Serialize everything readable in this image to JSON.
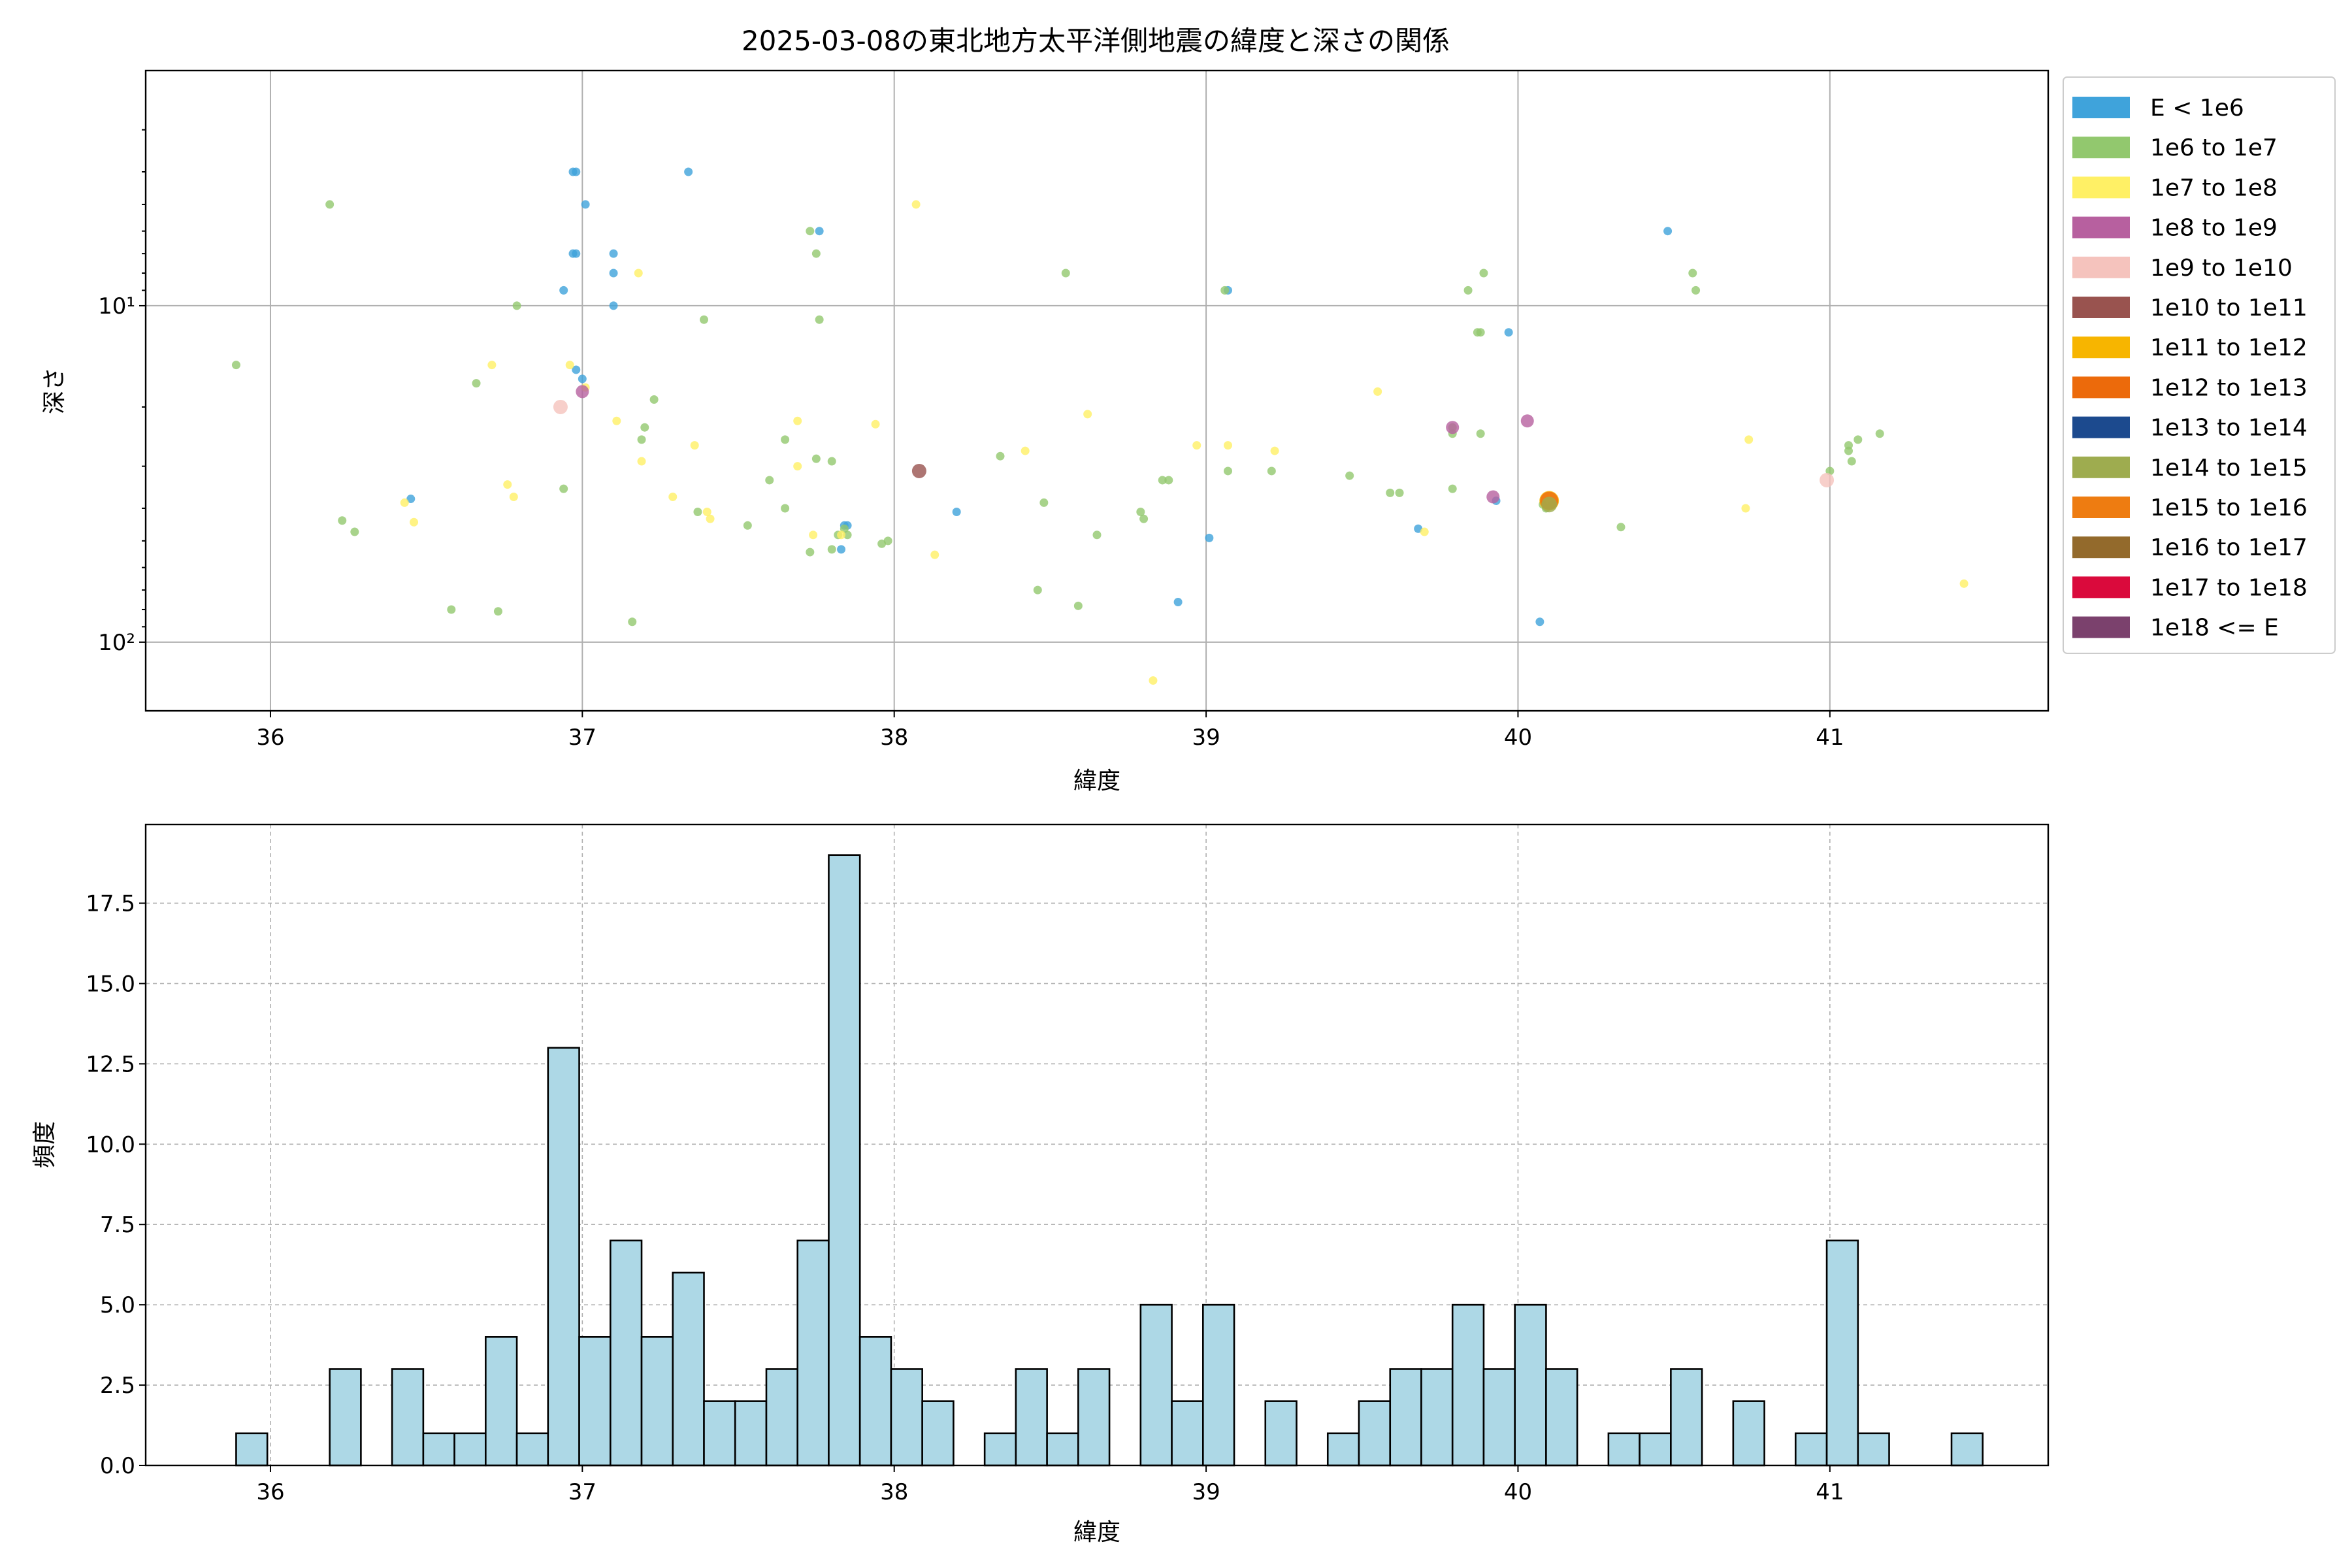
{
  "chart_data": [
    {
      "type": "scatter",
      "title": "2025-03-08の東北地方太平洋側地震の緯度と深さの関係",
      "xlabel": "緯度",
      "ylabel": "深さ",
      "xlim": [
        35.6,
        41.7
      ],
      "ylim": [
        160,
        2
      ],
      "yscale": "log",
      "y_inverted": true,
      "x_ticks": [
        "36",
        "37",
        "38",
        "39",
        "40",
        "41"
      ],
      "y_ticks": [
        {
          "value": 10,
          "label": "10¹"
        },
        {
          "value": 100,
          "label": "10²"
        }
      ],
      "grid": true,
      "legend_position": "outside-right",
      "legend": [
        {
          "label": "E < 1e6",
          "color": "#3fa3db"
        },
        {
          "label": "1e6 to 1e7",
          "color": "#92c86e"
        },
        {
          "label": "1e7 to 1e8",
          "color": "#fff065"
        },
        {
          "label": "1e8 to 1e9",
          "color": "#b7609f"
        },
        {
          "label": "1e9 to 1e10",
          "color": "#f5c3bd"
        },
        {
          "label": "1e10 to 1e11",
          "color": "#99534f"
        },
        {
          "label": "1e11 to 1e12",
          "color": "#f7b500"
        },
        {
          "label": "1e12 to 1e13",
          "color": "#ec6a0b"
        },
        {
          "label": "1e13 to 1e14",
          "color": "#1c4a8e"
        },
        {
          "label": "1e14 to 1e15",
          "color": "#9eac4f"
        },
        {
          "label": "1e15 to 1e16",
          "color": "#ee7c11"
        },
        {
          "label": "1e16 to 1e17",
          "color": "#936a2c"
        },
        {
          "label": "1e17 to 1e18",
          "color": "#da0a3c"
        },
        {
          "label": "1e18 <= E",
          "color": "#7b416d"
        }
      ],
      "series": [
        {
          "name": "E < 1e6",
          "points": [
            [
              36.97,
              4
            ],
            [
              36.98,
              4
            ],
            [
              37.34,
              4
            ],
            [
              37.01,
              5
            ],
            [
              36.98,
              7
            ],
            [
              36.97,
              7
            ],
            [
              37.1,
              7
            ],
            [
              37.1,
              8
            ],
            [
              36.94,
              9
            ],
            [
              37.1,
              10
            ],
            [
              36.98,
              15.5
            ],
            [
              37.0,
              16.5
            ],
            [
              36.45,
              37.5
            ],
            [
              37.76,
              6
            ],
            [
              37.84,
              45
            ],
            [
              37.85,
              45
            ],
            [
              37.83,
              53
            ],
            [
              38.2,
              41
            ],
            [
              39.07,
              9
            ],
            [
              39.01,
              49
            ],
            [
              38.91,
              76
            ],
            [
              39.97,
              12
            ],
            [
              39.93,
              38
            ],
            [
              39.68,
              46
            ],
            [
              40.07,
              87
            ],
            [
              40.48,
              6
            ]
          ]
        },
        {
          "name": "1e6 to 1e7",
          "points": [
            [
              35.89,
              15
            ],
            [
              36.19,
              5
            ],
            [
              36.23,
              43.5
            ],
            [
              36.27,
              47
            ],
            [
              36.58,
              80
            ],
            [
              36.66,
              17
            ],
            [
              36.73,
              81
            ],
            [
              36.79,
              10
            ],
            [
              36.94,
              35
            ],
            [
              37.16,
              87
            ],
            [
              37.19,
              25
            ],
            [
              37.2,
              23
            ],
            [
              37.23,
              19
            ],
            [
              37.37,
              41
            ],
            [
              37.39,
              11
            ],
            [
              37.53,
              45
            ],
            [
              37.6,
              33
            ],
            [
              37.65,
              25
            ],
            [
              37.65,
              40
            ],
            [
              37.73,
              6
            ],
            [
              37.75,
              28.5
            ],
            [
              37.75,
              7
            ],
            [
              37.76,
              11
            ],
            [
              37.8,
              29
            ],
            [
              37.73,
              54
            ],
            [
              37.8,
              53
            ],
            [
              37.82,
              48
            ],
            [
              37.85,
              48
            ],
            [
              37.84,
              46
            ],
            [
              37.96,
              51
            ],
            [
              37.98,
              50
            ],
            [
              38.34,
              28
            ],
            [
              38.48,
              38.5
            ],
            [
              38.46,
              70
            ],
            [
              38.55,
              8
            ],
            [
              38.59,
              78
            ],
            [
              38.65,
              48
            ],
            [
              38.79,
              41
            ],
            [
              38.8,
              43
            ],
            [
              38.86,
              33
            ],
            [
              38.88,
              33
            ],
            [
              39.06,
              9
            ],
            [
              39.07,
              31
            ],
            [
              39.21,
              31
            ],
            [
              39.46,
              32
            ],
            [
              39.59,
              36
            ],
            [
              39.62,
              36
            ],
            [
              39.79,
              23
            ],
            [
              39.79,
              24
            ],
            [
              39.79,
              35
            ],
            [
              39.84,
              9
            ],
            [
              39.87,
              12
            ],
            [
              39.88,
              12
            ],
            [
              39.88,
              24
            ],
            [
              39.89,
              8
            ],
            [
              40.08,
              39
            ],
            [
              40.09,
              40
            ],
            [
              40.11,
              39
            ],
            [
              40.33,
              45.5
            ],
            [
              40.56,
              8
            ],
            [
              40.57,
              9
            ],
            [
              41.0,
              31
            ],
            [
              41.06,
              26
            ],
            [
              41.06,
              27
            ],
            [
              41.07,
              29
            ],
            [
              41.09,
              25
            ],
            [
              41.16,
              24
            ]
          ]
        },
        {
          "name": "1e7 to 1e8",
          "points": [
            [
              36.43,
              38.5
            ],
            [
              36.46,
              44
            ],
            [
              36.71,
              15
            ],
            [
              36.76,
              34
            ],
            [
              36.78,
              37
            ],
            [
              36.96,
              15
            ],
            [
              37.01,
              17.5
            ],
            [
              37.11,
              22
            ],
            [
              37.18,
              8
            ],
            [
              37.19,
              29
            ],
            [
              37.29,
              37
            ],
            [
              37.36,
              26
            ],
            [
              37.4,
              41
            ],
            [
              37.41,
              43
            ],
            [
              37.69,
              22
            ],
            [
              37.69,
              30
            ],
            [
              37.74,
              48
            ],
            [
              37.83,
              48
            ],
            [
              37.94,
              22.5
            ],
            [
              38.07,
              5
            ],
            [
              38.13,
              55
            ],
            [
              38.42,
              27
            ],
            [
              38.62,
              21
            ],
            [
              38.83,
              130
            ],
            [
              38.97,
              26
            ],
            [
              39.07,
              26
            ],
            [
              39.22,
              27
            ],
            [
              39.55,
              18
            ],
            [
              39.7,
              47
            ],
            [
              40.74,
              25
            ],
            [
              40.73,
              40
            ],
            [
              41.43,
              67
            ]
          ]
        },
        {
          "name": "1e8 to 1e9",
          "points": [
            [
              37.0,
              18
            ],
            [
              39.79,
              23
            ],
            [
              39.92,
              37
            ],
            [
              40.03,
              22
            ]
          ]
        },
        {
          "name": "1e9 to 1e10",
          "points": [
            [
              36.93,
              20
            ],
            [
              40.99,
              33
            ]
          ]
        },
        {
          "name": "1e10 to 1e11",
          "points": [
            [
              38.08,
              31
            ]
          ]
        },
        {
          "name": "1e11 to 1e12",
          "points": [
            [
              40.1,
              38
            ]
          ]
        },
        {
          "name": "1e12 to 1e13",
          "points": [
            [
              40.1,
              38
            ]
          ]
        },
        {
          "name": "1e14 to 1e15",
          "points": [
            [
              40.1,
              39
            ]
          ]
        }
      ]
    },
    {
      "type": "bar",
      "subtype": "histogram",
      "xlabel": "緯度",
      "ylabel": "頻度",
      "xlim": [
        35.6,
        41.7
      ],
      "ylim": [
        0,
        19.95
      ],
      "x_ticks": [
        "36",
        "37",
        "38",
        "39",
        "40",
        "41"
      ],
      "y_ticks": [
        "0.0",
        "2.5",
        "5.0",
        "7.5",
        "10.0",
        "12.5",
        "15.0",
        "17.5"
      ],
      "grid": true,
      "bin_start": 35.89,
      "bin_width": 0.1,
      "counts": [
        1,
        0,
        0,
        3,
        0,
        3,
        1,
        1,
        4,
        1,
        13,
        4,
        7,
        4,
        6,
        2,
        2,
        3,
        7,
        19,
        4,
        3,
        2,
        0,
        1,
        3,
        1,
        3,
        0,
        5,
        2,
        5,
        0,
        2,
        0,
        1,
        2,
        3,
        3,
        5,
        3,
        5,
        3,
        0,
        1,
        1,
        3,
        0,
        2,
        0,
        1,
        7,
        1,
        0,
        0,
        1
      ],
      "color": "#add8e6"
    }
  ]
}
